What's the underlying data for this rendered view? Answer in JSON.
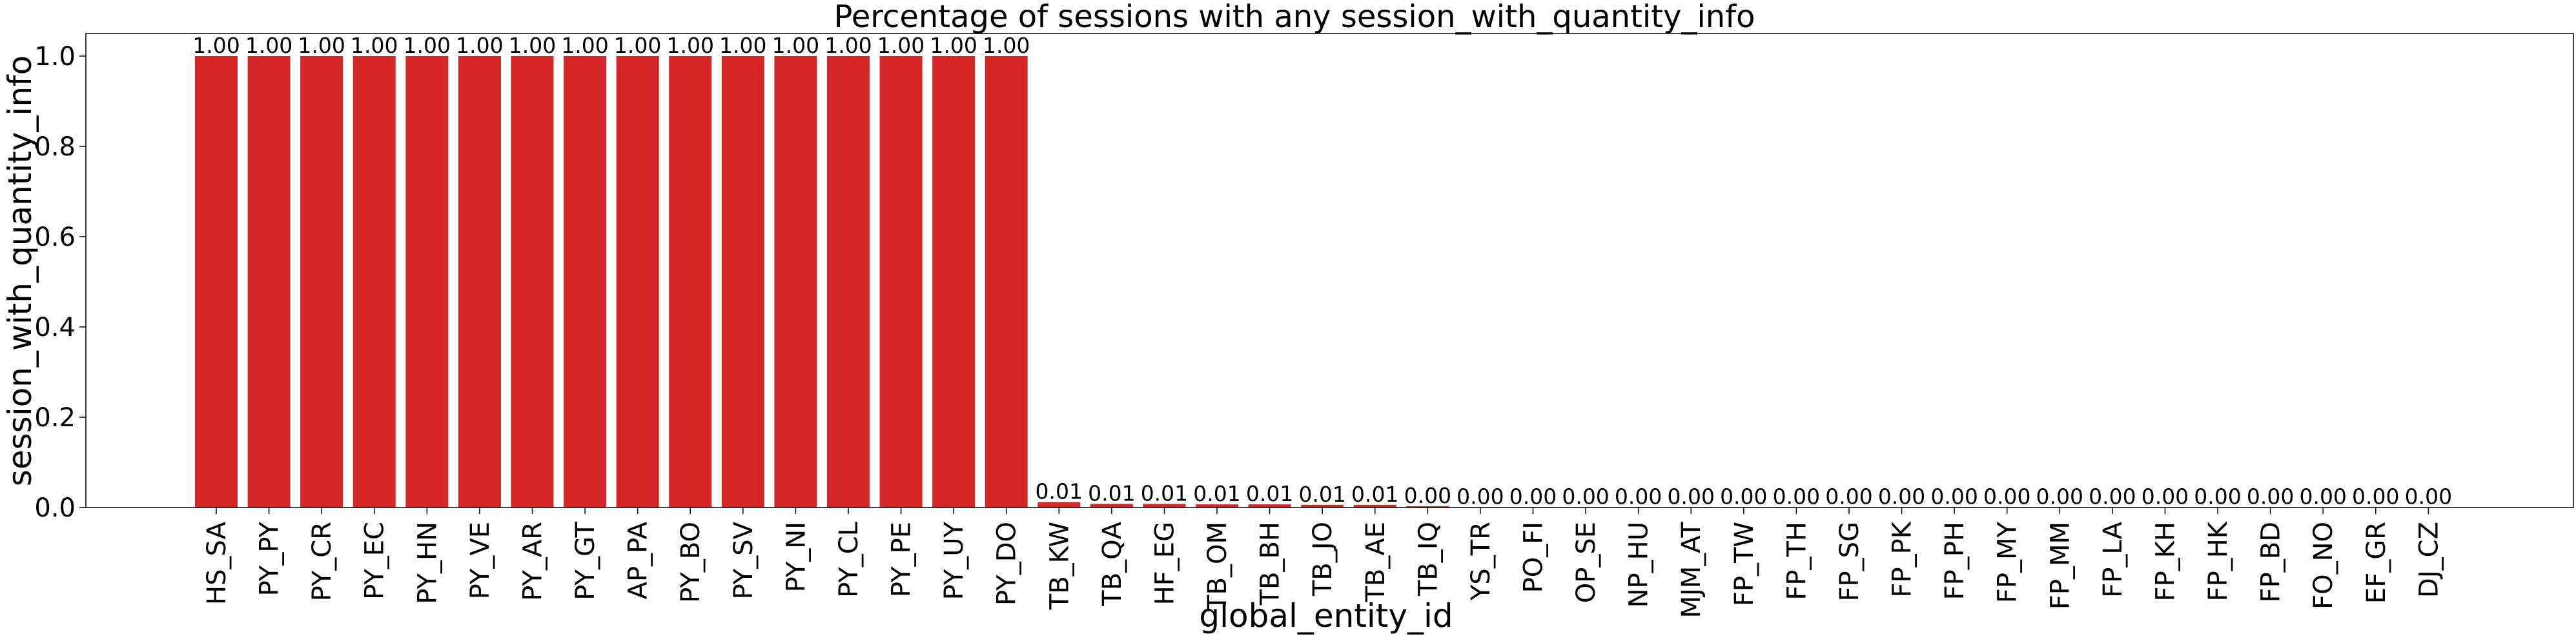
{
  "chart_data": {
    "type": "bar",
    "title": "Percentage of sessions with any session_with_quantity_info",
    "xlabel": "global_entity_id",
    "ylabel": "session_with_quantity_info",
    "ylim": [
      0,
      1.05
    ],
    "yticks": [
      0.0,
      0.2,
      0.4,
      0.6,
      0.8,
      1.0
    ],
    "ytick_labels": [
      "0.0",
      "0.2",
      "0.4",
      "0.6",
      "0.8",
      "1.0"
    ],
    "grid": false,
    "legend": "none",
    "bar_color": "#d62728",
    "categories": [
      "HS_SA",
      "PY_PY",
      "PY_CR",
      "PY_EC",
      "PY_HN",
      "PY_VE",
      "PY_AR",
      "PY_GT",
      "AP_PA",
      "PY_BO",
      "PY_SV",
      "PY_NI",
      "PY_CL",
      "PY_PE",
      "PY_UY",
      "PY_DO",
      "TB_KW",
      "TB_QA",
      "HF_EG",
      "TB_OM",
      "TB_BH",
      "TB_JO",
      "TB_AE",
      "TB_IQ",
      "YS_TR",
      "PO_FI",
      "OP_SE",
      "NP_HU",
      "MJM_AT",
      "FP_TW",
      "FP_TH",
      "FP_SG",
      "FP_PK",
      "FP_PH",
      "FP_MY",
      "FP_MM",
      "FP_LA",
      "FP_KH",
      "FP_HK",
      "FP_BD",
      "FO_NO",
      "EF_GR",
      "DJ_CZ"
    ],
    "values": [
      1.0,
      1.0,
      1.0,
      1.0,
      1.0,
      1.0,
      1.0,
      1.0,
      1.0,
      1.0,
      1.0,
      1.0,
      1.0,
      1.0,
      1.0,
      1.0,
      0.012,
      0.008,
      0.008,
      0.007,
      0.007,
      0.006,
      0.006,
      0.003,
      0.001,
      0.001,
      0.001,
      0.001,
      0.001,
      0.001,
      0.001,
      0.001,
      0.001,
      0.001,
      0.001,
      0.001,
      0.001,
      0.001,
      0.001,
      0.001,
      0.001,
      0.001,
      0.001
    ],
    "data_labels": [
      "1.00",
      "1.00",
      "1.00",
      "1.00",
      "1.00",
      "1.00",
      "1.00",
      "1.00",
      "1.00",
      "1.00",
      "1.00",
      "1.00",
      "1.00",
      "1.00",
      "1.00",
      "1.00",
      "0.01",
      "0.01",
      "0.01",
      "0.01",
      "0.01",
      "0.01",
      "0.01",
      "0.00",
      "0.00",
      "0.00",
      "0.00",
      "0.00",
      "0.00",
      "0.00",
      "0.00",
      "0.00",
      "0.00",
      "0.00",
      "0.00",
      "0.00",
      "0.00",
      "0.00",
      "0.00",
      "0.00",
      "0.00",
      "0.00",
      "0.00"
    ]
  }
}
